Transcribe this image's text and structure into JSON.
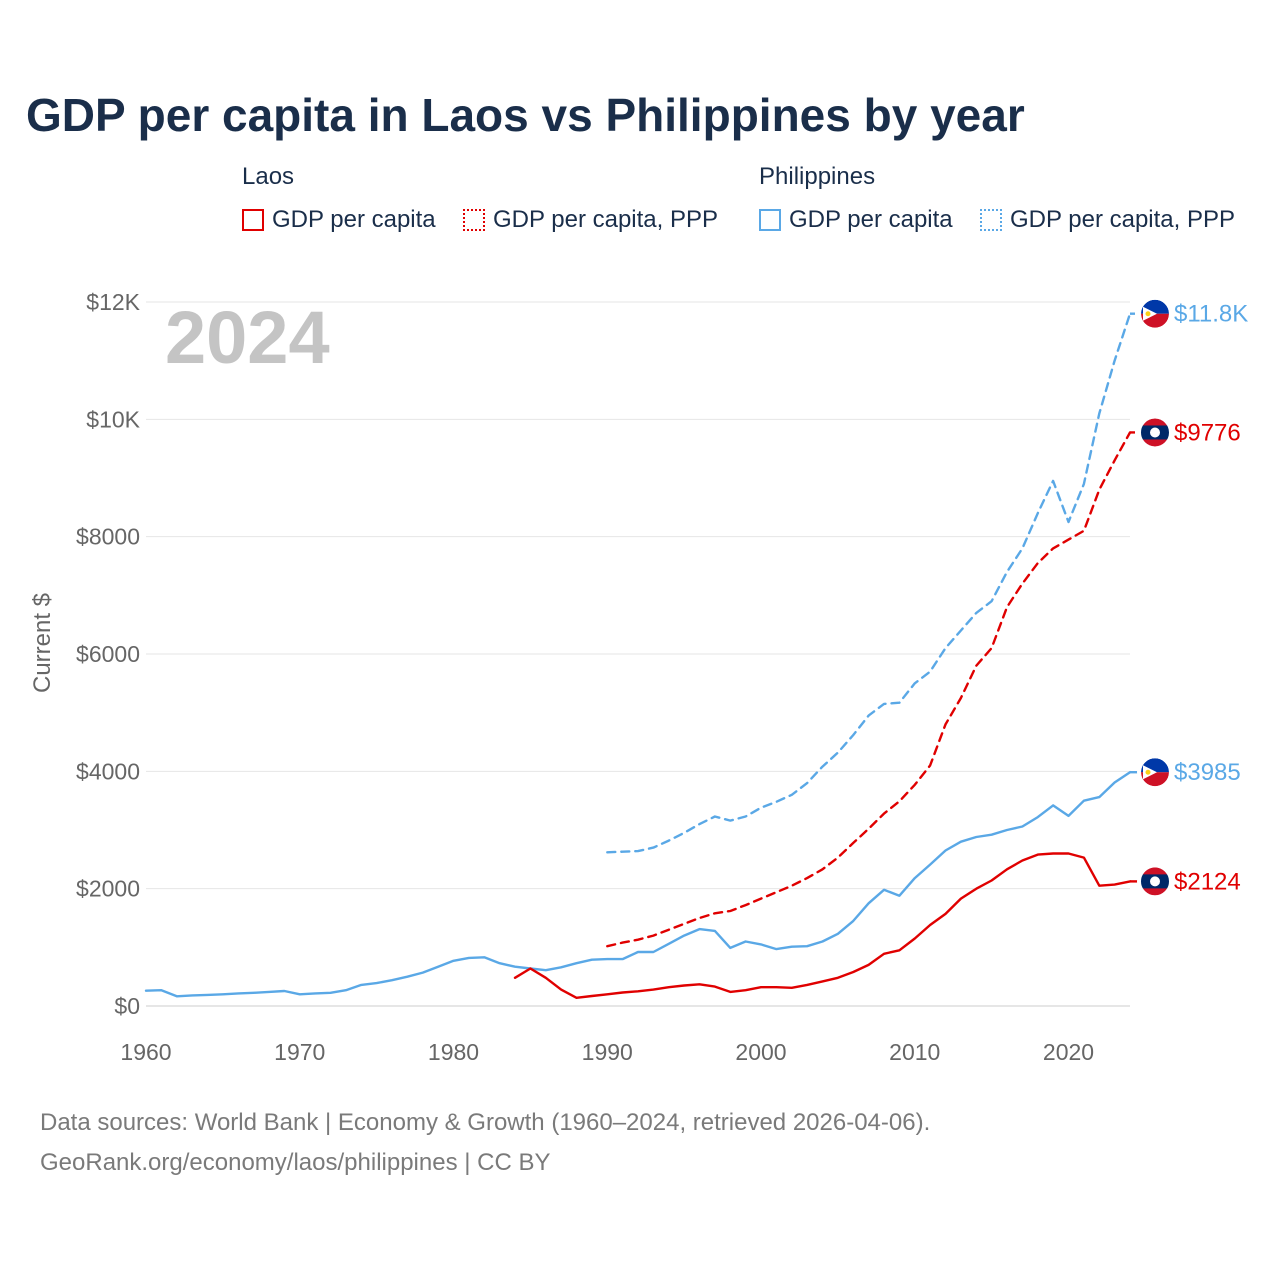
{
  "title": "GDP per capita in Laos vs Philippines by year",
  "legend": {
    "groups": [
      {
        "name": "Laos",
        "color": "#e00000",
        "items": [
          "GDP per capita",
          "GDP per capita, PPP"
        ]
      },
      {
        "name": "Philippines",
        "color": "#5aa8e6",
        "items": [
          "GDP per capita",
          "GDP per capita, PPP"
        ]
      }
    ]
  },
  "source": {
    "line1": "Data sources: World Bank | Economy & Growth (1960–2024, retrieved 2026-04-06).",
    "line2": "GeoRank.org/economy/laos/philippines | CC BY"
  },
  "chart_data": {
    "type": "line",
    "title": "GDP per capita in Laos vs Philippines by year",
    "year_label": "2024",
    "ylabel": "Current $",
    "xlabel": "",
    "xlim": [
      1960,
      2024
    ],
    "ylim": [
      0,
      12000
    ],
    "x_ticks": [
      {
        "value": 1960,
        "label": "1960"
      },
      {
        "value": 1970,
        "label": "1970"
      },
      {
        "value": 1980,
        "label": "1980"
      },
      {
        "value": 1990,
        "label": "1990"
      },
      {
        "value": 2000,
        "label": "2000"
      },
      {
        "value": 2010,
        "label": "2010"
      },
      {
        "value": 2020,
        "label": "2020"
      }
    ],
    "y_ticks": [
      {
        "value": 0,
        "label": "$0"
      },
      {
        "value": 2000,
        "label": "$2000"
      },
      {
        "value": 4000,
        "label": "$4000"
      },
      {
        "value": 6000,
        "label": "$6000"
      },
      {
        "value": 8000,
        "label": "$8000"
      },
      {
        "value": 10000,
        "label": "$10K"
      },
      {
        "value": 12000,
        "label": "$12K"
      }
    ],
    "grid": true,
    "series": [
      {
        "name": "Philippines GDP per capita, PPP",
        "country": "Philippines",
        "style": "dashed",
        "color": "#5aa8e6",
        "end_label": "$11.8K",
        "x": [
          1990,
          1991,
          1992,
          1993,
          1994,
          1995,
          1996,
          1997,
          1998,
          1999,
          2000,
          2001,
          2002,
          2003,
          2004,
          2005,
          2006,
          2007,
          2008,
          2009,
          2010,
          2011,
          2012,
          2013,
          2014,
          2015,
          2016,
          2017,
          2018,
          2019,
          2020,
          2021,
          2022,
          2023,
          2024
        ],
        "values": [
          2620,
          2630,
          2640,
          2700,
          2820,
          2950,
          3100,
          3230,
          3160,
          3230,
          3380,
          3480,
          3600,
          3800,
          4080,
          4320,
          4620,
          4950,
          5150,
          5170,
          5500,
          5700,
          6100,
          6400,
          6700,
          6900,
          7400,
          7800,
          8400,
          8950,
          8250,
          8900,
          10100,
          11000,
          11800
        ]
      },
      {
        "name": "Laos GDP per capita, PPP",
        "country": "Laos",
        "style": "dashed",
        "color": "#e00000",
        "end_label": "$9776",
        "x": [
          1990,
          1991,
          1992,
          1993,
          1994,
          1995,
          1996,
          1997,
          1998,
          1999,
          2000,
          2001,
          2002,
          2003,
          2004,
          2005,
          2006,
          2007,
          2008,
          2009,
          2010,
          2011,
          2012,
          2013,
          2014,
          2015,
          2016,
          2017,
          2018,
          2019,
          2020,
          2021,
          2022,
          2023,
          2024
        ],
        "values": [
          1020,
          1080,
          1130,
          1200,
          1300,
          1400,
          1500,
          1580,
          1620,
          1720,
          1830,
          1940,
          2050,
          2180,
          2330,
          2530,
          2780,
          3020,
          3280,
          3490,
          3770,
          4100,
          4800,
          5250,
          5800,
          6100,
          6800,
          7200,
          7550,
          7800,
          7950,
          8100,
          8800,
          9300,
          9776
        ]
      },
      {
        "name": "Philippines GDP per capita",
        "country": "Philippines",
        "style": "solid",
        "color": "#5aa8e6",
        "end_label": "$3985",
        "x": [
          1960,
          1961,
          1962,
          1963,
          1964,
          1965,
          1966,
          1967,
          1968,
          1969,
          1970,
          1971,
          1972,
          1973,
          1974,
          1975,
          1976,
          1977,
          1978,
          1979,
          1980,
          1981,
          1982,
          1983,
          1984,
          1985,
          1986,
          1987,
          1988,
          1989,
          1990,
          1991,
          1992,
          1993,
          1994,
          1995,
          1996,
          1997,
          1998,
          1999,
          2000,
          2001,
          2002,
          2003,
          2004,
          2005,
          2006,
          2007,
          2008,
          2009,
          2010,
          2011,
          2012,
          2013,
          2014,
          2015,
          2016,
          2017,
          2018,
          2019,
          2020,
          2021,
          2022,
          2023,
          2024
        ],
        "values": [
          260,
          270,
          165,
          180,
          190,
          200,
          215,
          225,
          240,
          255,
          200,
          215,
          225,
          270,
          360,
          390,
          440,
          500,
          570,
          670,
          770,
          820,
          830,
          730,
          670,
          640,
          610,
          660,
          730,
          790,
          800,
          800,
          920,
          920,
          1060,
          1200,
          1310,
          1280,
          990,
          1100,
          1050,
          970,
          1010,
          1020,
          1100,
          1230,
          1450,
          1750,
          1980,
          1880,
          2180,
          2410,
          2650,
          2800,
          2880,
          2920,
          3000,
          3060,
          3220,
          3420,
          3240,
          3500,
          3560,
          3810,
          3985
        ]
      },
      {
        "name": "Laos GDP per capita",
        "country": "Laos",
        "style": "solid",
        "color": "#e00000",
        "end_label": "$2124",
        "x": [
          1984,
          1985,
          1986,
          1987,
          1988,
          1989,
          1990,
          1991,
          1992,
          1993,
          1994,
          1995,
          1996,
          1997,
          1998,
          1999,
          2000,
          2001,
          2002,
          2003,
          2004,
          2005,
          2006,
          2007,
          2008,
          2009,
          2010,
          2011,
          2012,
          2013,
          2014,
          2015,
          2016,
          2017,
          2018,
          2019,
          2020,
          2021,
          2022,
          2023,
          2024
        ],
        "values": [
          480,
          640,
          480,
          280,
          140,
          170,
          200,
          230,
          250,
          280,
          320,
          350,
          370,
          330,
          240,
          270,
          320,
          320,
          310,
          360,
          420,
          480,
          580,
          700,
          890,
          950,
          1150,
          1380,
          1570,
          1830,
          2000,
          2140,
          2330,
          2480,
          2580,
          2600,
          2600,
          2530,
          2050,
          2070,
          2124
        ]
      }
    ]
  }
}
